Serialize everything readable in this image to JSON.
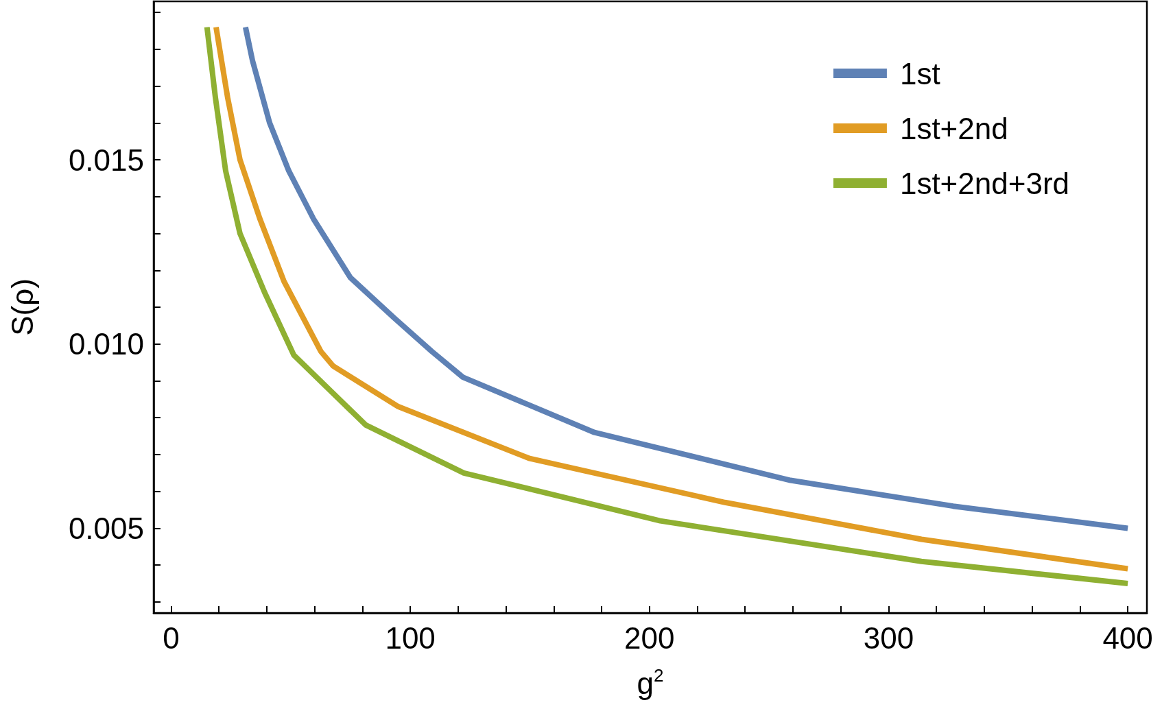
{
  "chart_data": {
    "type": "line",
    "xlabel": "g$^{2}$",
    "ylabel": "S(ρ)",
    "xlim": [
      -7.3,
      408
    ],
    "ylim": [
      0.0027,
      0.0193
    ],
    "xticks": [
      0,
      {
        "value": 20,
        "label": null
      },
      {
        "value": 40,
        "label": null
      },
      {
        "value": 60,
        "label": null
      },
      {
        "value": 80,
        "label": null
      },
      100,
      {
        "value": 120,
        "label": null
      },
      {
        "value": 140,
        "label": null
      },
      {
        "value": 160,
        "label": null
      },
      {
        "value": 180,
        "label": null
      },
      200,
      {
        "value": 220,
        "label": null
      },
      {
        "value": 240,
        "label": null
      },
      {
        "value": 260,
        "label": null
      },
      {
        "value": 280,
        "label": null
      },
      300,
      {
        "value": 320,
        "label": null
      },
      {
        "value": 340,
        "label": null
      },
      {
        "value": 360,
        "label": null
      },
      {
        "value": 380,
        "label": null
      },
      400
    ],
    "yticks": [
      {
        "value": 0.003,
        "label": null
      },
      {
        "value": 0.004,
        "label": null
      },
      {
        "value": 0.005,
        "label": "0.005"
      },
      {
        "value": 0.006,
        "label": null
      },
      {
        "value": 0.007,
        "label": null
      },
      {
        "value": 0.008,
        "label": null
      },
      {
        "value": 0.009,
        "label": null
      },
      {
        "value": 0.01,
        "label": "0.010"
      },
      {
        "value": 0.011,
        "label": null
      },
      {
        "value": 0.012,
        "label": null
      },
      {
        "value": 0.013,
        "label": null
      },
      {
        "value": 0.014,
        "label": null
      },
      {
        "value": 0.015,
        "label": "0.015"
      },
      {
        "value": 0.016,
        "label": null
      },
      {
        "value": 0.017,
        "label": null
      },
      {
        "value": 0.018,
        "label": null
      },
      {
        "value": 0.019,
        "label": null
      }
    ],
    "grid": false,
    "legend": "top right",
    "marker": "none",
    "line_style": "solid",
    "series": [
      {
        "name": "1st",
        "color": "#5e81b5",
        "x": [
          31.1,
          34,
          41.2,
          49.2,
          59.5,
          75,
          93.4,
          109,
          122,
          177,
          259,
          327,
          400
        ],
        "values": [
          0.0186,
          0.0177,
          0.016,
          0.0147,
          0.0134,
          0.0118,
          0.0107,
          0.0098,
          0.0091,
          0.0076,
          0.0063,
          0.0056,
          0.005
        ]
      },
      {
        "name": "1st+2nd",
        "color": "#e19c24",
        "x": [
          18.8,
          23.6,
          28.8,
          37.1,
          47.2,
          62.6,
          67.8,
          95,
          149.6,
          231.6,
          313.7,
          400
        ],
        "values": [
          0.0186,
          0.0167,
          0.015,
          0.0134,
          0.0117,
          0.0098,
          0.0094,
          0.0083,
          0.0069,
          0.0057,
          0.0047,
          0.0039
        ]
      },
      {
        "name": "1st+2nd+3rd",
        "color": "#8fb032",
        "x": [
          15,
          18.5,
          22.8,
          28.8,
          39.1,
          51.3,
          81.4,
          122.4,
          204.5,
          313.7,
          400
        ],
        "values": [
          0.0186,
          0.0167,
          0.0147,
          0.013,
          0.0114,
          0.0097,
          0.0078,
          0.0065,
          0.0052,
          0.0041,
          0.0035
        ]
      }
    ]
  }
}
